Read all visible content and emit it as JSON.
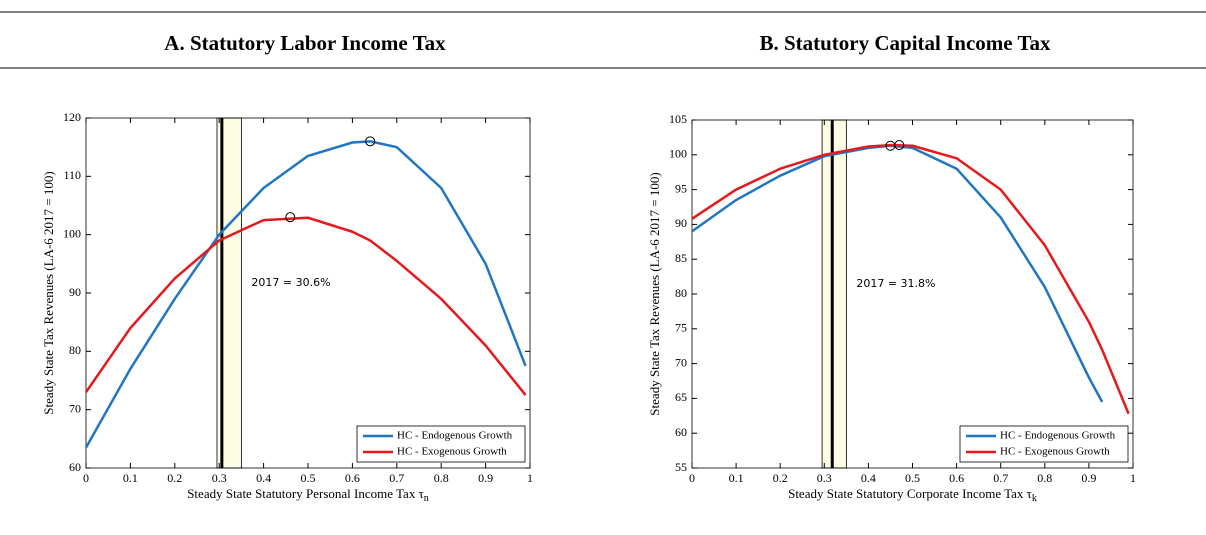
{
  "chart_data": [
    {
      "type": "line",
      "title": "A. Statutory Labor Income Tax",
      "xlabel": "Steady State Statutory Personal Income Tax τ",
      "xlabel_sub": "n",
      "ylabel": "Steady State Tax Revenues (LA-6 2017 = 100)",
      "x": [
        0,
        0.1,
        0.2,
        0.3,
        0.4,
        0.5,
        0.6,
        0.64,
        0.7,
        0.8,
        0.9,
        0.99
      ],
      "series": [
        {
          "name": "HC - Endogenous Growth",
          "color": "#1f77c4",
          "values": [
            63.5,
            77,
            89,
            100,
            108,
            113.5,
            115.8,
            116,
            115,
            108,
            95,
            77.5
          ]
        },
        {
          "name": "HC - Exogenous Growth",
          "color": "#e41a1c",
          "values": [
            73,
            84,
            92.5,
            99,
            102.5,
            102.9,
            100.5,
            99,
            95.5,
            89,
            81,
            72.5
          ]
        }
      ],
      "markers": {
        "x": [
          0.64,
          0.46
        ],
        "y": [
          116,
          103
        ]
      },
      "vline": 0.306,
      "band": [
        0.295,
        0.35
      ],
      "annotation": "2017 = 30.6%",
      "xlim": [
        0,
        1
      ],
      "ylim": [
        60,
        120
      ],
      "xticks": [
        0,
        0.1,
        0.2,
        0.3,
        0.4,
        0.5,
        0.6,
        0.7,
        0.8,
        0.9,
        1
      ],
      "yticks": [
        60,
        70,
        80,
        90,
        100,
        110,
        120
      ],
      "legend": "lower right"
    },
    {
      "type": "line",
      "title": "B. Statutory Capital Income Tax",
      "xlabel": "Steady State Statutory Corporate Income Tax τ",
      "xlabel_sub": "k",
      "ylabel": "Steady State Tax Revenues (LA-6 2017 = 100)",
      "x": [
        0,
        0.1,
        0.2,
        0.3,
        0.4,
        0.45,
        0.5,
        0.6,
        0.7,
        0.8,
        0.9,
        0.93,
        0.99
      ],
      "series": [
        {
          "name": "HC - Endogenous Growth",
          "color": "#1f77c4",
          "values": [
            89,
            93.5,
            97,
            99.8,
            101,
            101.3,
            101,
            98,
            91,
            81,
            68,
            64.5,
            null
          ]
        },
        {
          "name": "HC - Exogenous Growth",
          "color": "#e41a1c",
          "values": [
            90.8,
            95,
            98,
            100,
            101.2,
            101.4,
            101.3,
            99.5,
            95,
            87,
            76,
            72,
            62.8
          ]
        }
      ],
      "markers": {
        "x": [
          0.45,
          0.47
        ],
        "y": [
          101.3,
          101.4
        ]
      },
      "vline": 0.318,
      "band": [
        0.295,
        0.35
      ],
      "annotation": "2017 = 31.8%",
      "xlim": [
        0,
        1
      ],
      "ylim": [
        55,
        105
      ],
      "xticks": [
        0,
        0.1,
        0.2,
        0.3,
        0.4,
        0.5,
        0.6,
        0.7,
        0.8,
        0.9,
        1
      ],
      "yticks": [
        55,
        60,
        65,
        70,
        75,
        80,
        85,
        90,
        95,
        100,
        105
      ],
      "legend": "lower right"
    }
  ]
}
